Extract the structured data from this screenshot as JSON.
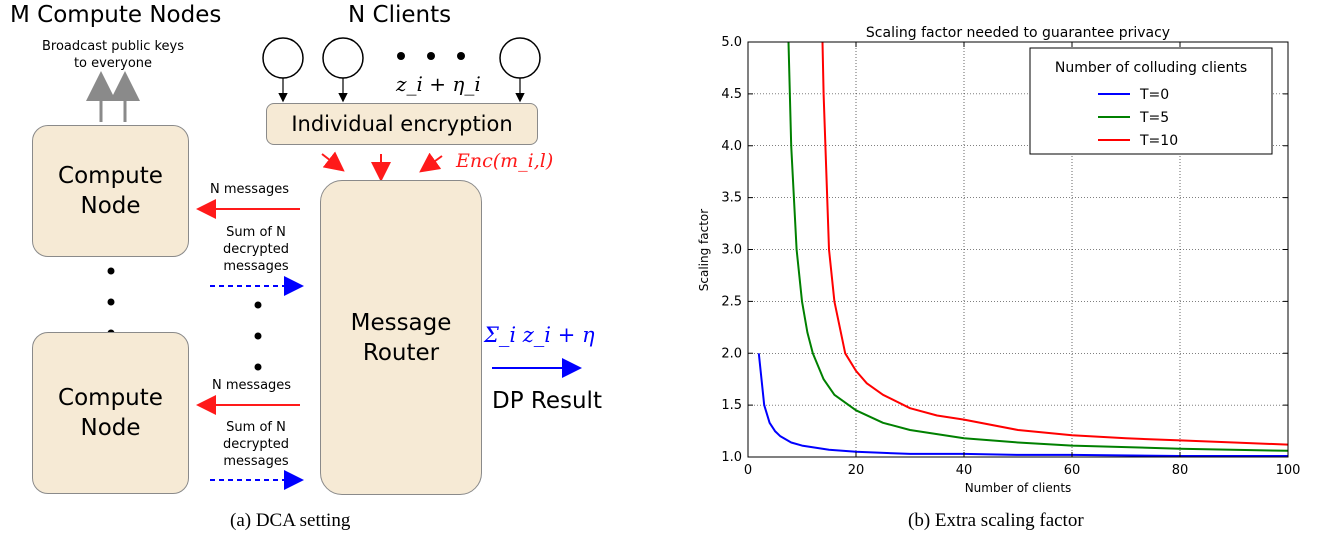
{
  "left": {
    "nodes_title": "M Compute Nodes",
    "clients_title": "N Clients",
    "broadcast_line1": "Broadcast public keys",
    "broadcast_line2": "to everyone",
    "compute_node_line1": "Compute",
    "compute_node_line2": "Node",
    "encryption_box": "Individual encryption",
    "client_value": "z_i + η_i",
    "enc_label": "Enc(m_i,l)",
    "router_line1": "Message",
    "router_line2": "Router",
    "n_messages": "N messages",
    "sum_line1": "Sum of N",
    "sum_line2": "decrypted",
    "sum_line3": "messages",
    "sum_formula": "Σ_i z_i + η",
    "dp_result": "DP Result",
    "caption": "(a)  DCA setting"
  },
  "right": {
    "caption": "(b)  Extra scaling factor"
  },
  "chart_data": {
    "type": "line",
    "title": "Scaling factor needed to guarantee privacy",
    "xlabel": "Number of clients",
    "ylabel": "Scaling factor",
    "xlim": [
      0,
      100
    ],
    "ylim": [
      1.0,
      5.0
    ],
    "xticks": [
      "0",
      "20",
      "40",
      "60",
      "80",
      "100"
    ],
    "yticks": [
      "1.0",
      "1.5",
      "2.0",
      "2.5",
      "3.0",
      "3.5",
      "4.0",
      "4.5",
      "5.0"
    ],
    "grid": true,
    "legend_title": "Number of colluding clients",
    "legend_position": "top-right",
    "series": [
      {
        "name": "T=0",
        "color": "#0000ff",
        "x": [
          2,
          3,
          4,
          5,
          6,
          8,
          10,
          15,
          20,
          30,
          40,
          50,
          60,
          80,
          100
        ],
        "y": [
          2.0,
          1.5,
          1.33,
          1.25,
          1.2,
          1.14,
          1.11,
          1.07,
          1.05,
          1.03,
          1.03,
          1.02,
          1.02,
          1.01,
          1.01
        ]
      },
      {
        "name": "T=5",
        "color": "#008000",
        "x": [
          7.5,
          8,
          9,
          10,
          11,
          12,
          14,
          16,
          20,
          25,
          30,
          40,
          50,
          60,
          80,
          100
        ],
        "y": [
          5.0,
          4.0,
          3.0,
          2.5,
          2.2,
          2.0,
          1.75,
          1.6,
          1.45,
          1.33,
          1.26,
          1.18,
          1.14,
          1.11,
          1.08,
          1.06
        ]
      },
      {
        "name": "T=10",
        "color": "#ff0000",
        "x": [
          13.8,
          14,
          15,
          16,
          18,
          20,
          22,
          25,
          30,
          35,
          40,
          50,
          60,
          70,
          80,
          90,
          100
        ],
        "y": [
          5.0,
          4.5,
          3.0,
          2.5,
          2.0,
          1.83,
          1.71,
          1.6,
          1.47,
          1.4,
          1.36,
          1.26,
          1.21,
          1.18,
          1.16,
          1.14,
          1.12
        ]
      }
    ]
  }
}
